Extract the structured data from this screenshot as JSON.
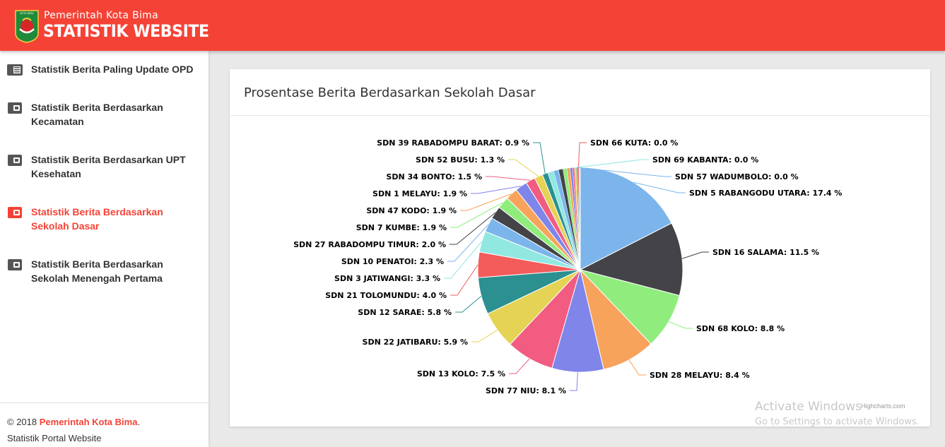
{
  "header": {
    "subtitle": "Pemerintah Kota Bima",
    "title": "STATISTIK WEBSITE",
    "logo_text": "KOTA BIMA",
    "color": "#f44336"
  },
  "sidebar": {
    "items": [
      {
        "label": "Statistik Berita Paling Update OPD",
        "icon": "newspaper-icon",
        "active": false
      },
      {
        "label": "Statistik Berita Berdasarkan Kecamatan",
        "icon": "wallet-icon",
        "active": false
      },
      {
        "label": "Statistik Berita Berdasarkan UPT Kesehatan",
        "icon": "wallet-icon",
        "active": false
      },
      {
        "label": "Statistik Berita Berdasarkan Sekolah Dasar",
        "icon": "wallet-icon",
        "active": true
      },
      {
        "label": "Statistik Berita Berdasarkan Sekolah Menengah Pertama",
        "icon": "wallet-icon",
        "active": false
      }
    ]
  },
  "footer": {
    "copyright": "© 2018 ",
    "org": "Pemerintah Kota Bima",
    "period": ".",
    "subtitle": "Statistik Portal Website"
  },
  "card": {
    "title": "Prosentase Berita Berdasarkan Sekolah Dasar",
    "credits": "Highcharts.com"
  },
  "watermark": {
    "line1": "Activate Windows",
    "line2": "Go to Settings to activate Windows."
  },
  "chart_data": {
    "type": "pie",
    "title": "Prosentase Berita Berdasarkan Sekolah Dasar",
    "series": [
      {
        "name": "SDN 5 RABANGODU UTARA",
        "value": 17.4,
        "color": "#7cb5ec"
      },
      {
        "name": "SDN 16 SALAMA",
        "value": 11.5,
        "color": "#434348"
      },
      {
        "name": "SDN 68 KOLO",
        "value": 8.8,
        "color": "#90ed7d"
      },
      {
        "name": "SDN 28 MELAYU",
        "value": 8.4,
        "color": "#f7a35c"
      },
      {
        "name": "SDN 77 NIU",
        "value": 8.1,
        "color": "#8085e9"
      },
      {
        "name": "SDN 13 KOLO",
        "value": 7.5,
        "color": "#f15c80"
      },
      {
        "name": "SDN 22 JATIBARU",
        "value": 5.9,
        "color": "#e4d354"
      },
      {
        "name": "SDN 12 SARAE",
        "value": 5.8,
        "color": "#2b908f"
      },
      {
        "name": "SDN 21 TOLOMUNDU",
        "value": 4.0,
        "color": "#f45b5b"
      },
      {
        "name": "SDN 3 JATIWANGI",
        "value": 3.3,
        "color": "#91e8e1"
      },
      {
        "name": "SDN 10 PENATOI",
        "value": 2.3,
        "color": "#7cb5ec"
      },
      {
        "name": "SDN 27 RABADOMPU TIMUR",
        "value": 2.0,
        "color": "#434348"
      },
      {
        "name": "SDN 7 KUMBE",
        "value": 1.9,
        "color": "#90ed7d"
      },
      {
        "name": "SDN 47 KODO",
        "value": 1.9,
        "color": "#f7a35c"
      },
      {
        "name": "SDN 1 MELAYU",
        "value": 1.9,
        "color": "#8085e9"
      },
      {
        "name": "SDN 34  BONTO",
        "value": 1.5,
        "color": "#f15c80"
      },
      {
        "name": "SDN 52 BUSU",
        "value": 1.3,
        "color": "#e4d354"
      },
      {
        "name": "SDN 39 RABADOMPU BARAT",
        "value": 0.9,
        "color": "#2b908f"
      },
      {
        "name": "SDN 66 KUTA",
        "value": 0.0,
        "color": "#f45b5b"
      },
      {
        "name": "SDN 69 KABANTA",
        "value": 0.0,
        "color": "#91e8e1"
      },
      {
        "name": "SDN 57 WADUMBOLO",
        "value": 0.0,
        "color": "#7cb5ec"
      }
    ],
    "minor_slices": [
      0.9,
      0.8,
      0.7,
      0.6,
      0.5,
      0.4,
      0.3,
      0.3,
      0.2,
      0.2,
      0.1,
      0.1
    ],
    "minor_colors": [
      "#91e8e1",
      "#7cb5ec",
      "#434348",
      "#90ed7d",
      "#f7a35c",
      "#8085e9",
      "#f15c80",
      "#e4d354",
      "#2b908f",
      "#f45b5b",
      "#91e8e1",
      "#7cb5ec"
    ],
    "unit": "%"
  }
}
